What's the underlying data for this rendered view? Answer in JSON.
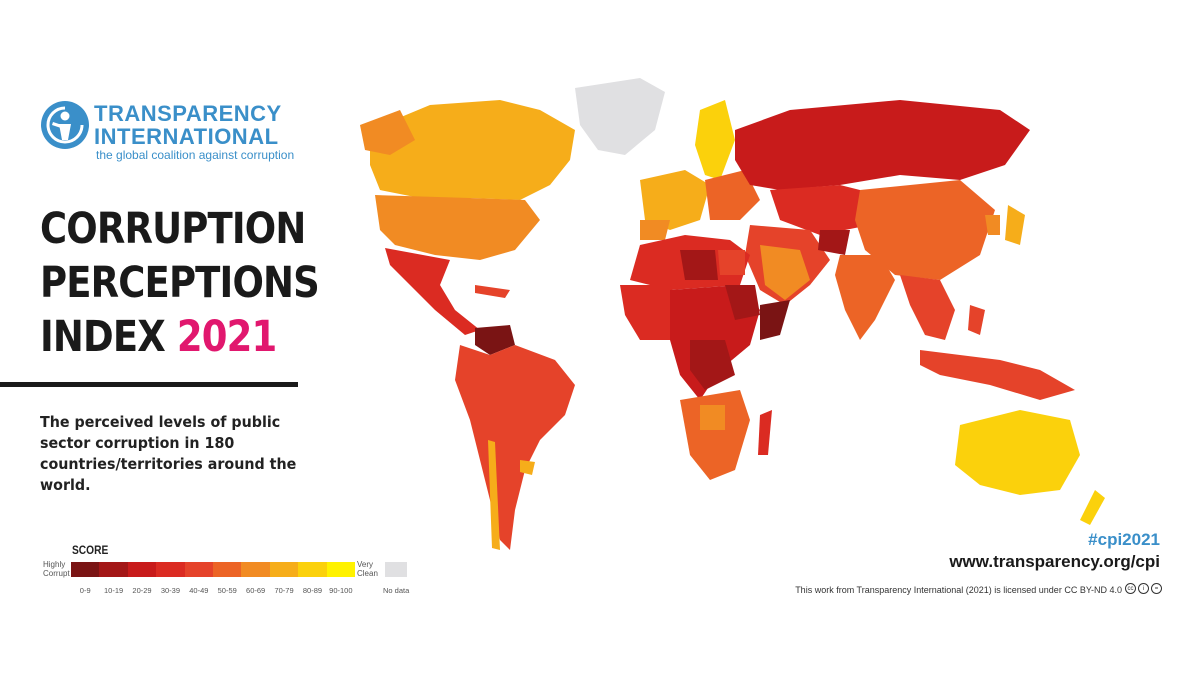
{
  "logo": {
    "line1": "TRANSPARENCY",
    "line2": "INTERNATIONAL",
    "tagline": "the global coalition against corruption"
  },
  "title": {
    "line1": "CORRUPTION",
    "line2": "PERCEPTIONS",
    "line3_prefix": "INDEX ",
    "year": "2021"
  },
  "subtitle": "The perceived levels of public sector corruption in 180 countries/territories around the world.",
  "legend": {
    "title": "SCORE",
    "low_label_1": "Highly",
    "low_label_2": "Corrupt",
    "high_label_1": "Very",
    "high_label_2": "Clean",
    "ranges": [
      "0-9",
      "10-19",
      "20-29",
      "30-39",
      "40-49",
      "50-59",
      "60-69",
      "70-79",
      "80-89",
      "90-100"
    ],
    "colors": [
      "#7a1414",
      "#a31717",
      "#c81b1b",
      "#db2b22",
      "#e5432a",
      "#ec6426",
      "#f18b23",
      "#f6ad1a",
      "#fbd10c",
      "#fff200"
    ],
    "no_data_label": "No data",
    "no_data_color": "#e0e0e2"
  },
  "footer": {
    "hashtag": "#cpi2021",
    "url": "www.transparency.org/cpi",
    "license": "This work from Transparency International (2021) is licensed under CC BY-ND 4.0"
  },
  "colors": {
    "brand_blue": "#3a8fc9",
    "accent_pink": "#e1176e"
  }
}
